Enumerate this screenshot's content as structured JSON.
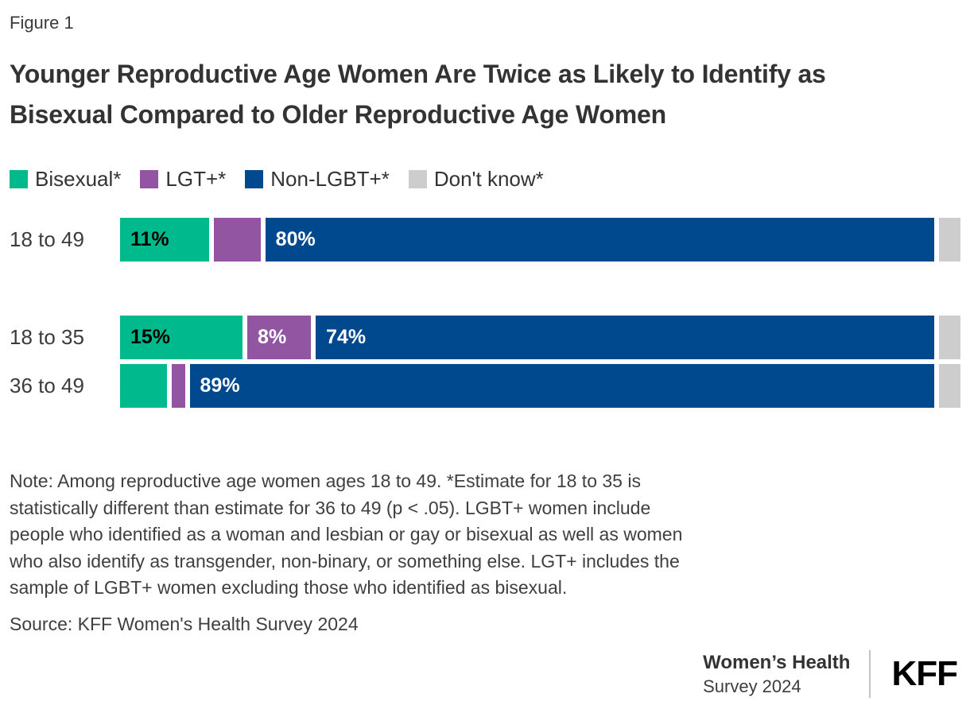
{
  "figure_label": "Figure 1",
  "title": "Younger Reproductive Age Women Are Twice as Likely to Identify as Bisexual Compared to Older Reproductive Age Women",
  "chart_data": {
    "type": "bar",
    "stacked": true,
    "orientation": "horizontal",
    "unit": "percent",
    "x_range": [
      0,
      100
    ],
    "grid": false,
    "legend_position": "top",
    "categories": [
      "18 to 49",
      "18 to 35",
      "36 to 49"
    ],
    "series": [
      {
        "key": "bisexual",
        "name": "Bisexual*",
        "color": "#00b98c",
        "label_color": "#000000",
        "values": [
          11,
          15,
          6
        ],
        "labels": [
          "11%",
          "15%",
          ""
        ]
      },
      {
        "key": "lgt-plus",
        "name": "LGT+*",
        "color": "#9155a2",
        "label_color": "#ffffff",
        "values": [
          6,
          8,
          2
        ],
        "labels": [
          "",
          "8%",
          ""
        ]
      },
      {
        "key": "non-lgbt-plus",
        "name": "Non-LGBT+*",
        "color": "#00498e",
        "label_color": "#ffffff",
        "values": [
          80,
          74,
          89
        ],
        "labels": [
          "80%",
          "74%",
          "89%"
        ]
      },
      {
        "key": "dont-know",
        "name": "Don't know*",
        "color": "#cdcdcd",
        "label_color": "#333333",
        "values": [
          3,
          3,
          3
        ],
        "labels": [
          "",
          "",
          ""
        ]
      }
    ]
  },
  "note": "Note: Among reproductive age women ages 18 to 49. *Estimate for 18 to 35 is statistically different than estimate for 36 to 49 (p < .05). LGBT+ women include people who identified as a woman and lesbian or gay or bisexual as well as women who also identify as transgender, non-binary, or something else. LGT+ includes the sample of LGBT+ women excluding those who identified as bisexual.",
  "source": "Source: KFF Women's Health Survey 2024",
  "footer": {
    "program_line1": "Women’s Health",
    "program_line2": "Survey 2024",
    "logo": "KFF"
  },
  "colors": {
    "bisexual": "#00b98c",
    "lgt_plus": "#9155a2",
    "non_lgbt_plus": "#00498e",
    "dont_know": "#cdcdcd",
    "text_dark": "#333333",
    "divider": "#c4c4c4",
    "background": "#ffffff"
  }
}
